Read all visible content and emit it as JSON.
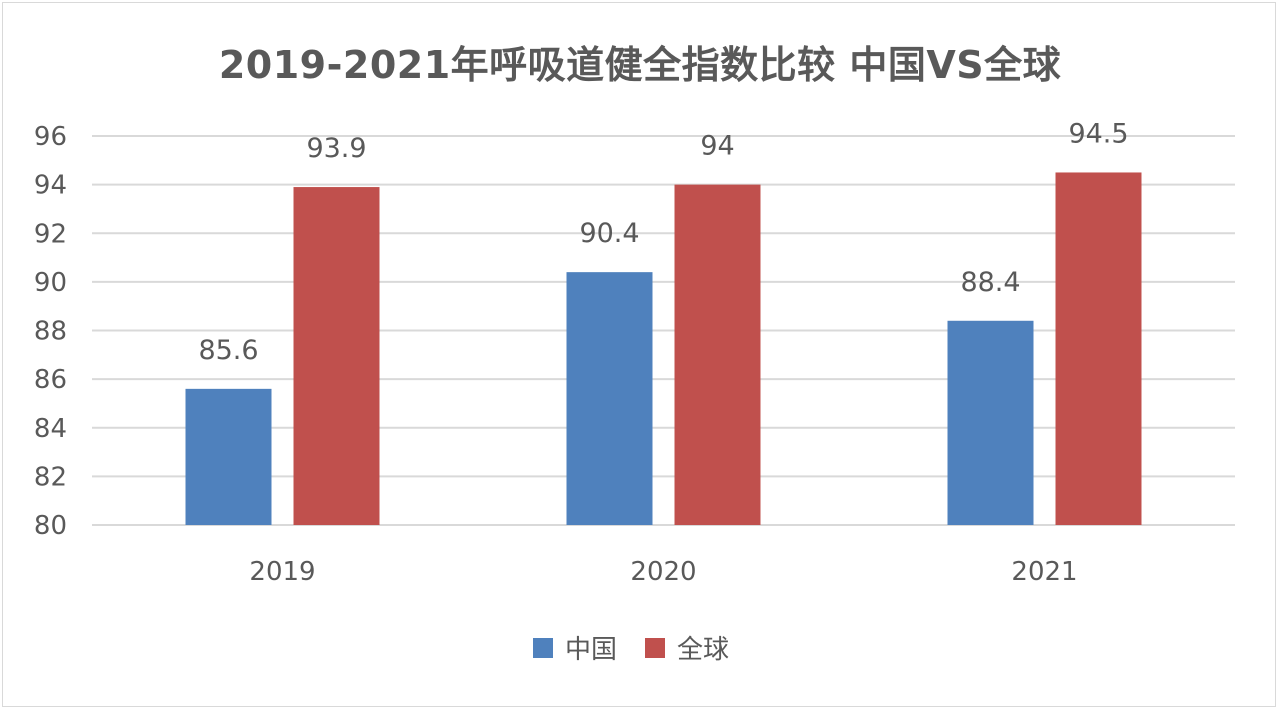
{
  "chart_data": {
    "type": "bar",
    "title": "2019-2021年呼吸道健全指数比较 中国VS全球",
    "categories": [
      "2019",
      "2020",
      "2021"
    ],
    "series": [
      {
        "name": "中国",
        "values": [
          85.6,
          90.4,
          88.4
        ],
        "color": "#4f81bd"
      },
      {
        "name": "全球",
        "values": [
          93.9,
          94,
          94.5
        ],
        "color": "#c0504d"
      }
    ],
    "data_labels": [
      [
        "85.6",
        "90.4",
        "88.4"
      ],
      [
        "93.9",
        "94",
        "94.5"
      ]
    ],
    "ylim": [
      80,
      96
    ],
    "yticks": [
      80,
      82,
      84,
      86,
      88,
      90,
      92,
      94,
      96
    ],
    "grid": true,
    "legend": "bottom",
    "xlabel": "",
    "ylabel": ""
  }
}
